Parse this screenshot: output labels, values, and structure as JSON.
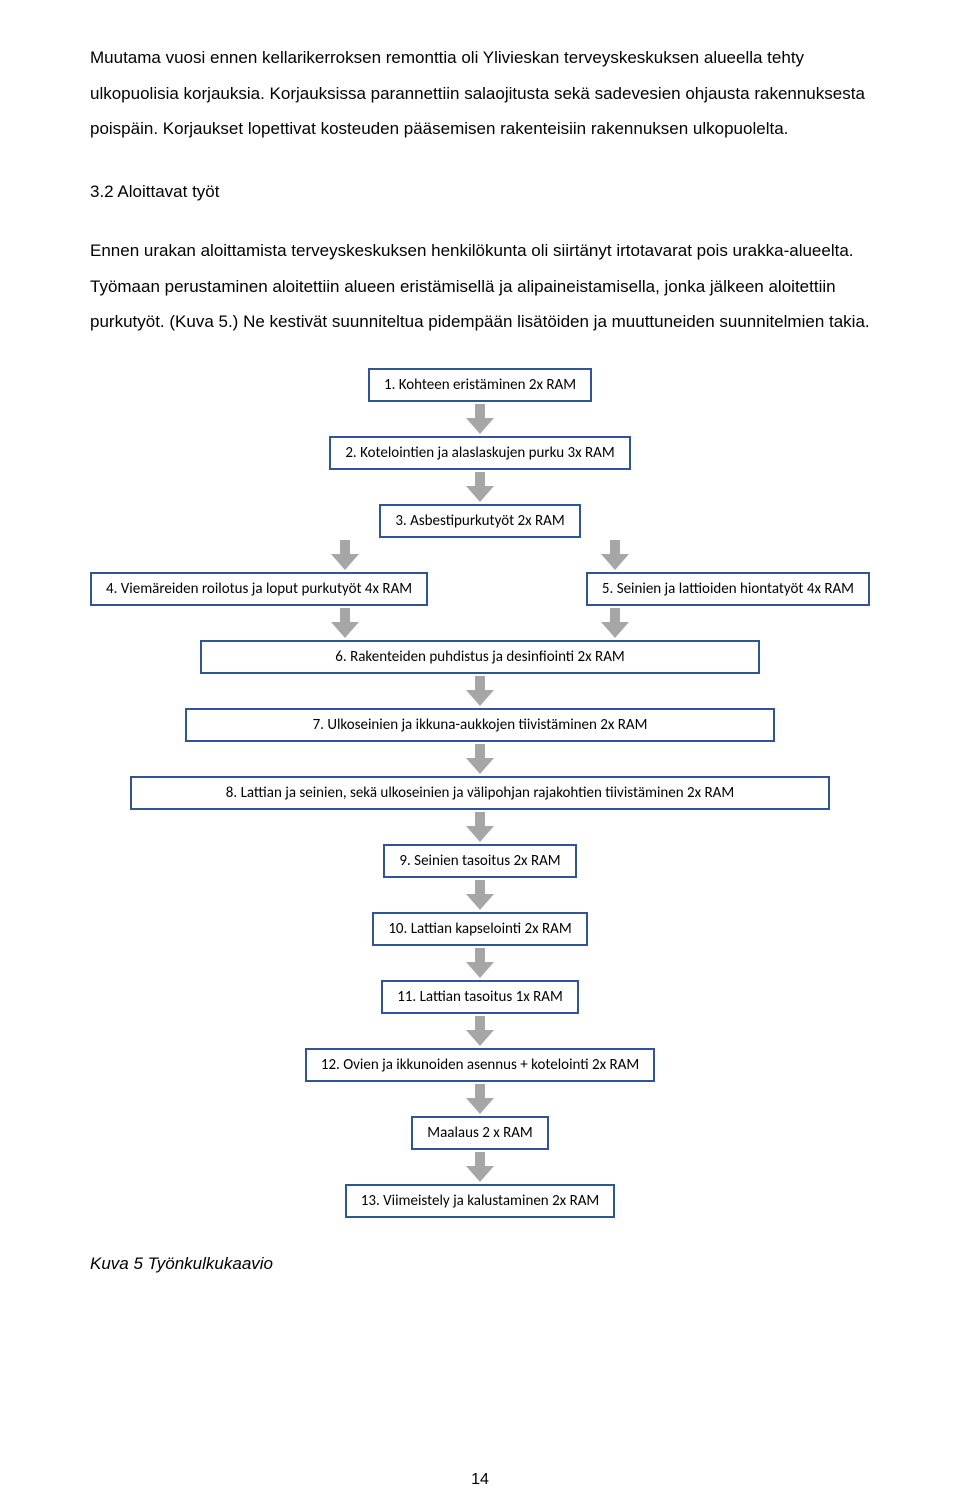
{
  "paragraph1": "Muutama vuosi ennen kellarikerroksen remonttia oli Ylivieskan terveyskeskuksen alueella tehty ulkopuolisia korjauksia. Korjauksissa parannettiin salaojitusta sekä sadevesien ohjausta rakennuksesta poispäin. Korjaukset lopettivat kosteuden pääsemisen rakenteisiin rakennuksen ulkopuolelta.",
  "heading": "3.2 Aloittavat työt",
  "paragraph2": "Ennen urakan aloittamista terveyskeskuksen henkilökunta oli siirtänyt irtotavarat pois urakka-alueelta. Työmaan perustaminen aloitettiin alueen eristämisellä ja alipaineistamisella, jonka jälkeen aloitettiin purkutyöt. (Kuva 5.) Ne kestivät suunniteltua pidempään lisätöiden ja muuttuneiden suunnitelmien takia.",
  "caption": "Kuva 5 Työnkulkukaavio",
  "page_number": "14",
  "flow": {
    "arrow_fill": "#a6a6a6",
    "border_color": "#2f5597",
    "nodes": {
      "n1": "1. Kohteen eristäminen   2x RAM",
      "n2": "2. Kotelointien ja alaslaskujen purku  3x RAM",
      "n3": "3. Asbestipurkutyöt  2x RAM",
      "n4": "4. Viemäreiden roilotus ja loput purkutyöt  4x RAM",
      "n5": "5. Seinien ja lattioiden hiontatyöt   4x RAM",
      "n6": "6. Rakenteiden puhdistus ja desinfiointi   2x RAM",
      "n7": "7. Ulkoseinien ja ikkuna-aukkojen tiivistäminen  2x RAM",
      "n8": "8. Lattian ja seinien, sekä ulkoseinien ja välipohjan rajakohtien tiivistäminen   2x RAM",
      "n9": "9. Seinien tasoitus 2x RAM",
      "n10": "10. Lattian kapselointi 2x RAM",
      "n11": "11. Lattian tasoitus  1x RAM",
      "n12": "12. Ovien ja ikkunoiden asennus + kotelointi 2x RAM",
      "n13a": "Maalaus  2 x RAM",
      "n13": "13. Viimeistely ja kalustaminen 2x RAM"
    }
  }
}
